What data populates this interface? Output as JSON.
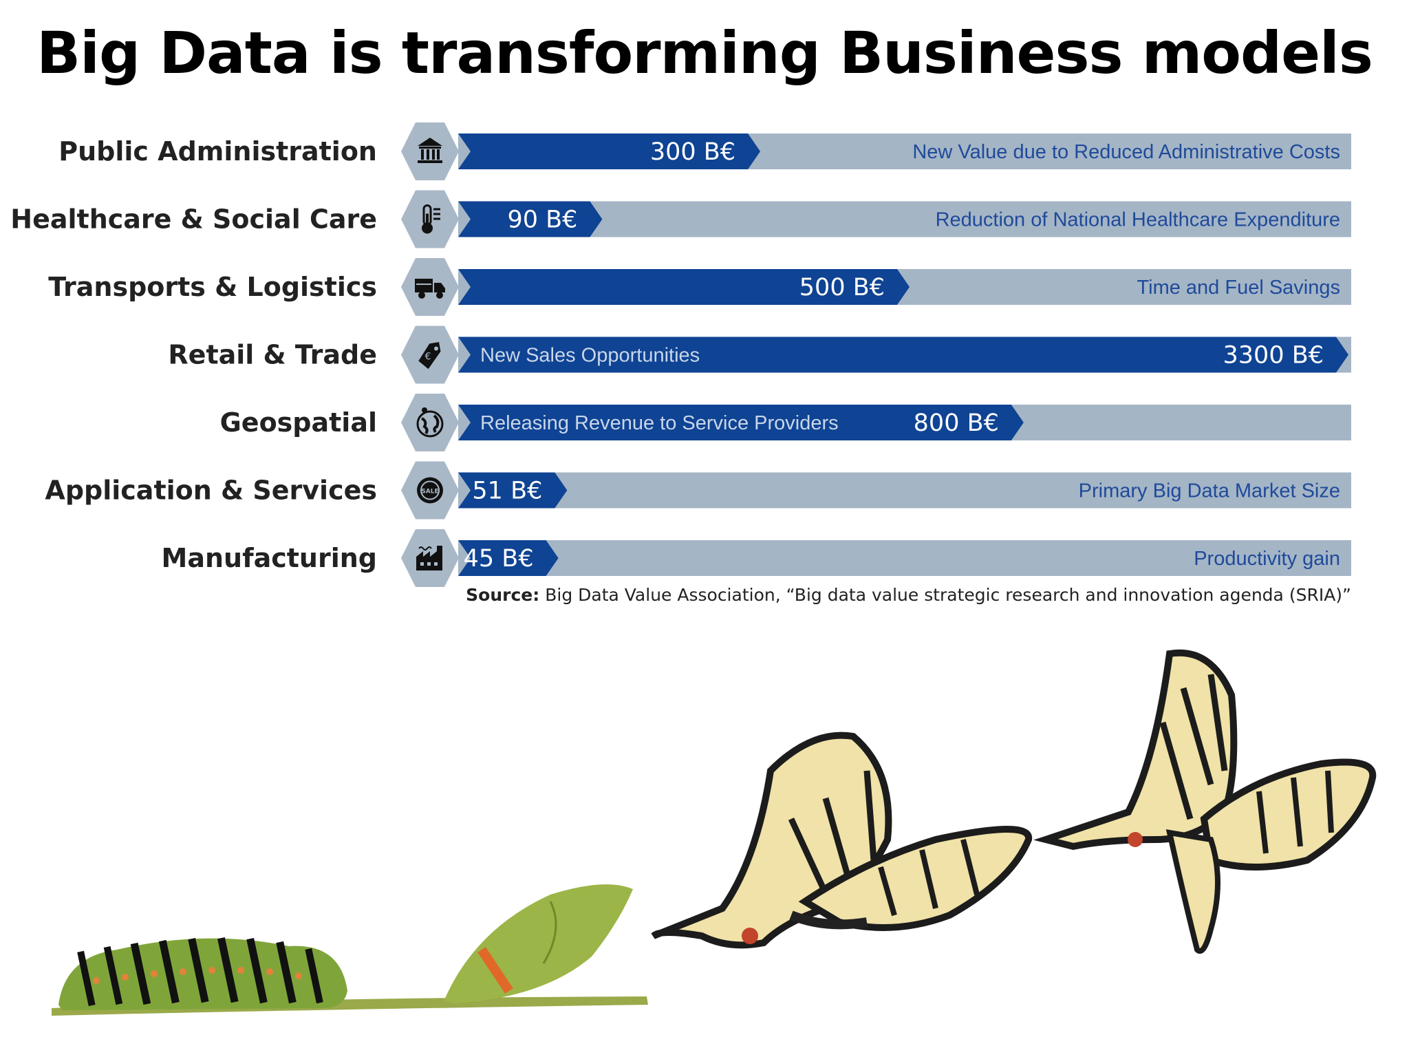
{
  "title": "Big Data is transforming Business models",
  "source": {
    "label": "Source:",
    "text": "Big Data Value Association, “Big data value strategic research and innovation agenda (SRIA)”"
  },
  "colors": {
    "bar_blue": "#0f4393",
    "bar_gray": "#a4b5c6",
    "hex_gray": "#a9b8c7"
  },
  "chart_data": {
    "type": "bar",
    "orientation": "horizontal",
    "unit": "B€",
    "categories": [
      "Public Administration",
      "Healthcare & Social Care",
      "Transports & Logistics",
      "Retail & Trade",
      "Geospatial",
      "Application & Services",
      "Manufacturing"
    ],
    "values": [
      300,
      90,
      500,
      3300,
      800,
      51,
      45
    ],
    "value_labels": [
      "300 B€",
      "90 B€",
      "500 B€",
      "3300 B€",
      "800 B€",
      "51 B€",
      "45 B€"
    ],
    "descriptions": [
      "New Value due to Reduced Administrative Costs",
      "Reduction of National Healthcare Expenditure",
      "Time and Fuel Savings",
      "New Sales Opportunities",
      "Releasing Revenue to Service Providers",
      "Primary Big Data Market Size",
      "Productivity gain"
    ],
    "bar_fill_fraction": [
      0.33,
      0.15,
      0.5,
      1.0,
      0.63,
      0.11,
      0.1
    ],
    "icons": [
      "bank-icon",
      "thermometer-icon",
      "truck-icon",
      "price-tag-icon",
      "globe-icon",
      "sale-badge-icon",
      "factory-icon"
    ]
  }
}
